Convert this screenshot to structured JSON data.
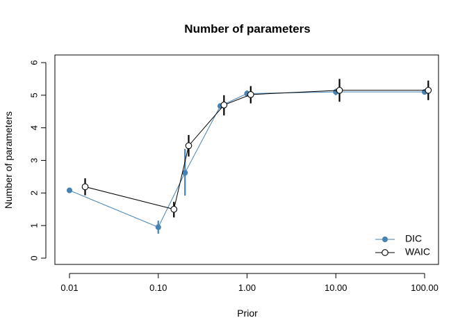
{
  "chart_data": {
    "type": "line",
    "title": "Number of parameters",
    "xlabel": "Prior",
    "ylabel": "Number of parameters",
    "x_scale": "log",
    "xlim": [
      0.01,
      100
    ],
    "ylim": [
      0,
      6
    ],
    "x_ticks": [
      0.01,
      0.1,
      1,
      10,
      100
    ],
    "x_tick_labels": [
      "0.01",
      "0.10",
      "1.00",
      "10.00",
      "100.00"
    ],
    "y_ticks": [
      0,
      1,
      2,
      3,
      4,
      5,
      6
    ],
    "y_tick_labels": [
      "0",
      "1",
      "2",
      "3",
      "4",
      "5",
      "6"
    ],
    "grid": false,
    "legend_position": "bottom-right",
    "series": [
      {
        "name": "DIC",
        "color": "#4682B4",
        "marker": "filled-circle",
        "x": [
          0.01,
          0.1,
          0.2,
          0.5,
          1,
          10,
          100
        ],
        "y": [
          2.08,
          0.95,
          2.62,
          4.67,
          5.05,
          5.1,
          5.1
        ],
        "err_low": [
          2.03,
          0.75,
          1.92,
          4.6,
          4.95,
          5.0,
          5.03
        ],
        "err_high": [
          2.13,
          1.15,
          3.35,
          4.75,
          5.15,
          5.2,
          5.17
        ]
      },
      {
        "name": "WAIC",
        "color": "#000000",
        "marker": "open-circle",
        "x": [
          0.015,
          0.15,
          0.22,
          0.55,
          1.1,
          11,
          110
        ],
        "y": [
          2.19,
          1.5,
          3.45,
          4.7,
          5.02,
          5.15,
          5.15
        ],
        "err_low": [
          1.93,
          1.25,
          3.12,
          4.38,
          4.75,
          4.8,
          4.85
        ],
        "err_high": [
          2.45,
          1.73,
          3.78,
          5.0,
          5.28,
          5.5,
          5.45
        ]
      }
    ]
  }
}
